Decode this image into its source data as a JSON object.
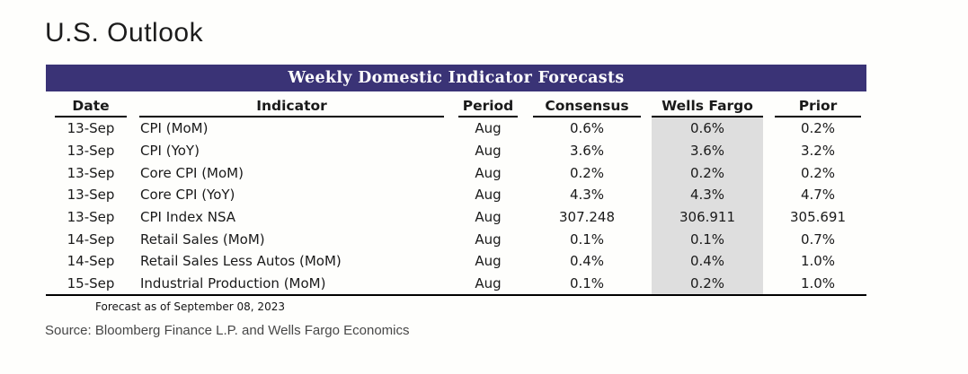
{
  "page": {
    "title": "U.S. Outlook"
  },
  "table": {
    "banner": "Weekly Domestic Indicator Forecasts",
    "banner_bg": "#3a3376",
    "banner_text_color": "#ffffff",
    "highlight_color": "#dedede",
    "columns": [
      "Date",
      "Indicator",
      "Period",
      "Consensus",
      "Wells Fargo",
      "Prior"
    ],
    "rows": [
      {
        "date": "13-Sep",
        "indicator": "CPI (MoM)",
        "period": "Aug",
        "consensus": "0.6%",
        "wells_fargo": "0.6%",
        "prior": "0.2%"
      },
      {
        "date": "13-Sep",
        "indicator": "CPI (YoY)",
        "period": "Aug",
        "consensus": "3.6%",
        "wells_fargo": "3.6%",
        "prior": "3.2%"
      },
      {
        "date": "13-Sep",
        "indicator": "Core CPI (MoM)",
        "period": "Aug",
        "consensus": "0.2%",
        "wells_fargo": "0.2%",
        "prior": "0.2%"
      },
      {
        "date": "13-Sep",
        "indicator": "Core CPI (YoY)",
        "period": "Aug",
        "consensus": "4.3%",
        "wells_fargo": "4.3%",
        "prior": "4.7%"
      },
      {
        "date": "13-Sep",
        "indicator": "CPI Index NSA",
        "period": "Aug",
        "consensus": "307.248",
        "wells_fargo": "306.911",
        "prior": "305.691"
      },
      {
        "date": "14-Sep",
        "indicator": "Retail Sales (MoM)",
        "period": "Aug",
        "consensus": "0.1%",
        "wells_fargo": "0.1%",
        "prior": "0.7%"
      },
      {
        "date": "14-Sep",
        "indicator": "Retail Sales Less Autos (MoM)",
        "period": "Aug",
        "consensus": "0.4%",
        "wells_fargo": "0.4%",
        "prior": "1.0%"
      },
      {
        "date": "15-Sep",
        "indicator": "Industrial Production (MoM)",
        "period": "Aug",
        "consensus": "0.1%",
        "wells_fargo": "0.2%",
        "prior": "1.0%"
      }
    ]
  },
  "footer": {
    "forecast_note": "Forecast as of September 08, 2023",
    "source": "Source: Bloomberg Finance L.P. and Wells Fargo Economics"
  }
}
